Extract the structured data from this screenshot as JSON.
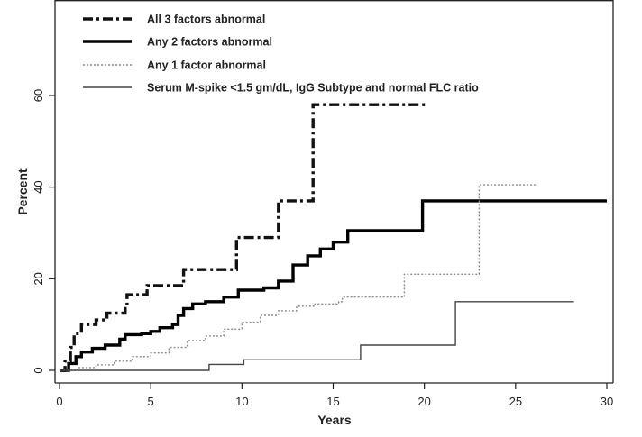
{
  "chart_data": {
    "type": "line",
    "title": "",
    "xlabel": "Years",
    "ylabel": "Percent",
    "xlim": [
      0,
      30
    ],
    "ylim": [
      -3,
      75
    ],
    "x_ticks": [
      0,
      5,
      10,
      15,
      20,
      25,
      30
    ],
    "y_ticks": [
      0,
      20,
      40,
      60
    ],
    "x_tick_labels": [
      "0",
      "5",
      "10",
      "15",
      "20",
      "25",
      "30"
    ],
    "y_tick_labels": [
      "0",
      "20",
      "40",
      "60"
    ],
    "grid": false,
    "legend_position": "top-left",
    "series": [
      {
        "name": "All 3 factors abnormal",
        "style": "dash-dot-thick",
        "color": "#111111",
        "points": [
          [
            0,
            0
          ],
          [
            0.3,
            2
          ],
          [
            0.6,
            5
          ],
          [
            0.8,
            8
          ],
          [
            1.2,
            10
          ],
          [
            2,
            11
          ],
          [
            2.6,
            12.5
          ],
          [
            3.6,
            13.5
          ],
          [
            3.7,
            16.5
          ],
          [
            4.6,
            16.5
          ],
          [
            4.8,
            18.5
          ],
          [
            6.7,
            18.5
          ],
          [
            6.8,
            22
          ],
          [
            8.5,
            22
          ],
          [
            9.6,
            22
          ],
          [
            9.7,
            29
          ],
          [
            11.9,
            29
          ],
          [
            12,
            37
          ],
          [
            13.7,
            37
          ],
          [
            13.9,
            58
          ],
          [
            20.2,
            58
          ]
        ]
      },
      {
        "name": "Any 2 factors abnormal",
        "style": "solid-thick",
        "color": "#000000",
        "points": [
          [
            0,
            0
          ],
          [
            0.5,
            1.5
          ],
          [
            0.9,
            3
          ],
          [
            1.2,
            4
          ],
          [
            1.8,
            4.8
          ],
          [
            2.5,
            5.5
          ],
          [
            3.3,
            6.8
          ],
          [
            3.6,
            7.8
          ],
          [
            4.5,
            8
          ],
          [
            5,
            8.5
          ],
          [
            5.5,
            9.3
          ],
          [
            6.2,
            10
          ],
          [
            6.5,
            12
          ],
          [
            6.8,
            13.5
          ],
          [
            7.3,
            14.5
          ],
          [
            8,
            15
          ],
          [
            9,
            16
          ],
          [
            9.8,
            17.5
          ],
          [
            11.2,
            18
          ],
          [
            12,
            19.5
          ],
          [
            12.8,
            23
          ],
          [
            13.6,
            25
          ],
          [
            14.3,
            26.5
          ],
          [
            15,
            28
          ],
          [
            15.8,
            30.5
          ],
          [
            17,
            30.5
          ],
          [
            19.8,
            30.5
          ],
          [
            19.9,
            37
          ],
          [
            30,
            37
          ]
        ]
      },
      {
        "name": "Any 1 factor abnormal",
        "style": "dotted-thin",
        "color": "#8a8a8a",
        "points": [
          [
            0,
            0
          ],
          [
            1,
            0.6
          ],
          [
            2,
            1.2
          ],
          [
            3,
            2
          ],
          [
            4,
            3
          ],
          [
            5,
            3.8
          ],
          [
            6,
            5
          ],
          [
            7,
            6.5
          ],
          [
            8,
            7.5
          ],
          [
            9,
            9
          ],
          [
            10,
            10.5
          ],
          [
            11,
            12
          ],
          [
            12,
            13
          ],
          [
            13,
            14
          ],
          [
            14,
            14.5
          ],
          [
            15.3,
            15
          ],
          [
            15.5,
            16
          ],
          [
            18.8,
            16
          ],
          [
            18.9,
            21
          ],
          [
            22.9,
            21
          ],
          [
            23,
            40.5
          ],
          [
            26.2,
            40.5
          ]
        ]
      },
      {
        "name": "Serum M-spike <1.5 gm/dL, IgG Subtype and normal FLC ratio",
        "style": "solid-thin",
        "color": "#444444",
        "points": [
          [
            0,
            0
          ],
          [
            8,
            0
          ],
          [
            8.2,
            1.3
          ],
          [
            10,
            1.3
          ],
          [
            10.1,
            2.3
          ],
          [
            16.4,
            2.3
          ],
          [
            16.5,
            5.5
          ],
          [
            21.6,
            5.5
          ],
          [
            21.7,
            15
          ],
          [
            28.2,
            15
          ]
        ]
      }
    ]
  }
}
